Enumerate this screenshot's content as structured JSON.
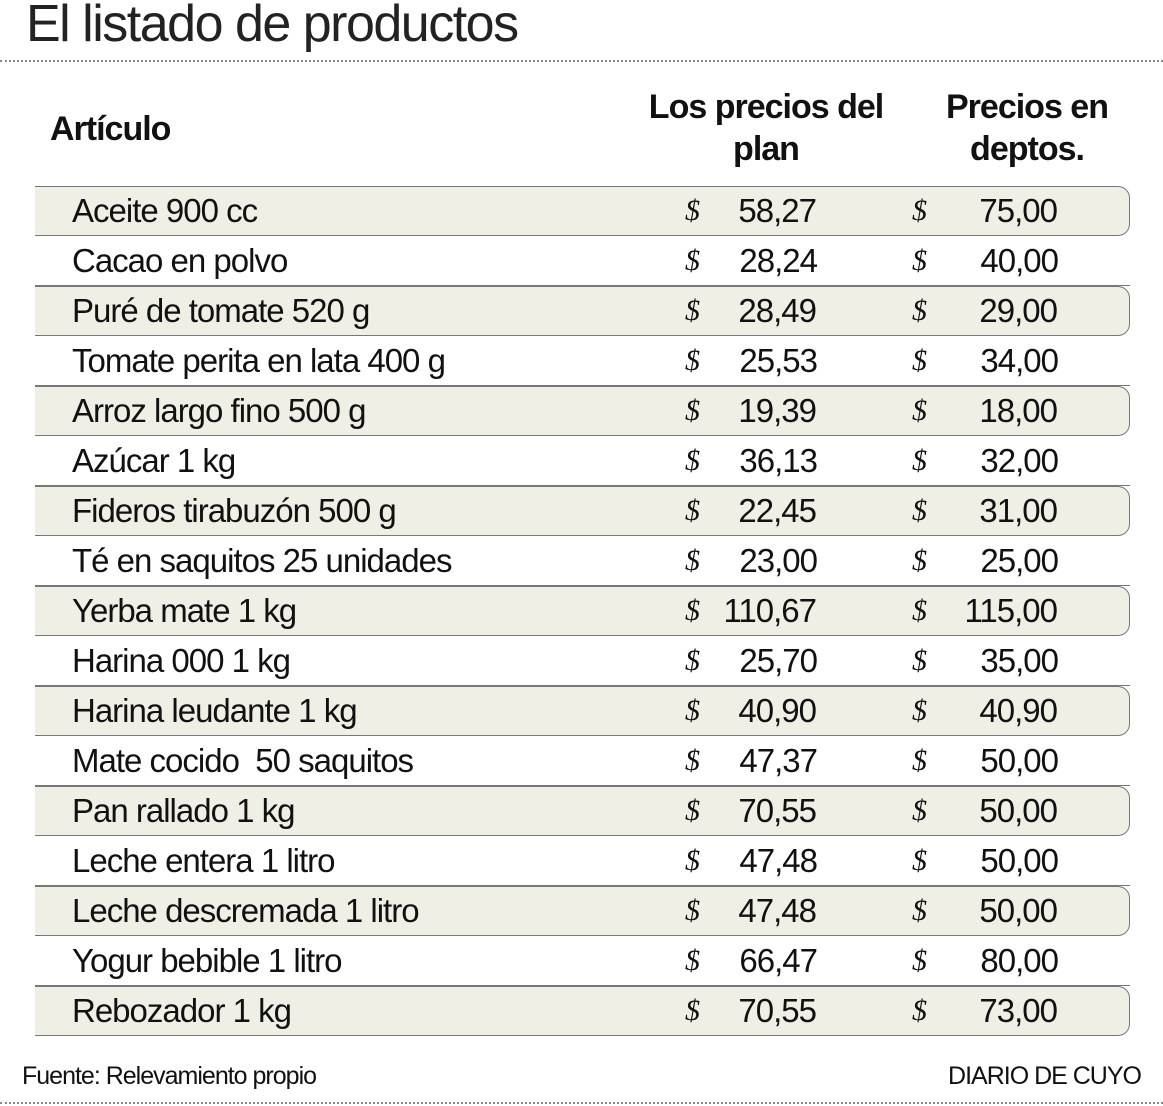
{
  "header": {
    "title": "El listado de productos"
  },
  "table": {
    "columns": [
      "Artículo",
      "Los precios del plan",
      "Precios en deptos."
    ],
    "currency": "$",
    "rows": [
      [
        "Aceite 900 cc",
        "58,27",
        "75,00"
      ],
      [
        "Cacao en polvo",
        "28,24",
        "40,00"
      ],
      [
        "Puré de tomate 520 g",
        "28,49",
        "29,00"
      ],
      [
        "Tomate perita en lata 400 g",
        "25,53",
        "34,00"
      ],
      [
        "Arroz largo fino 500 g",
        "19,39",
        "18,00"
      ],
      [
        "Azúcar 1 kg",
        "36,13",
        "32,00"
      ],
      [
        "Fideros tirabuzón 500 g",
        "22,45",
        "31,00"
      ],
      [
        "Té en saquitos 25 unidades",
        "23,00",
        "25,00"
      ],
      [
        "Yerba mate 1 kg",
        "110,67",
        "115,00"
      ],
      [
        "Harina 000 1 kg",
        "25,70",
        "35,00"
      ],
      [
        "Harina leudante 1 kg",
        "40,90",
        "40,90"
      ],
      [
        "Mate cocido  50 saquitos",
        "47,37",
        "50,00"
      ],
      [
        "Pan rallado 1 kg",
        "70,55",
        "50,00"
      ],
      [
        "Leche entera 1 litro",
        "47,48",
        "50,00"
      ],
      [
        "Leche descremada 1 litro",
        "47,48",
        "50,00"
      ],
      [
        "Yogur bebible 1 litro",
        "66,47",
        "80,00"
      ],
      [
        "Rebozador 1 kg",
        "70,55",
        "73,00"
      ]
    ]
  },
  "footer": {
    "source": "Fuente: Relevamiento propio",
    "brand": "DIARIO DE CUYO"
  }
}
